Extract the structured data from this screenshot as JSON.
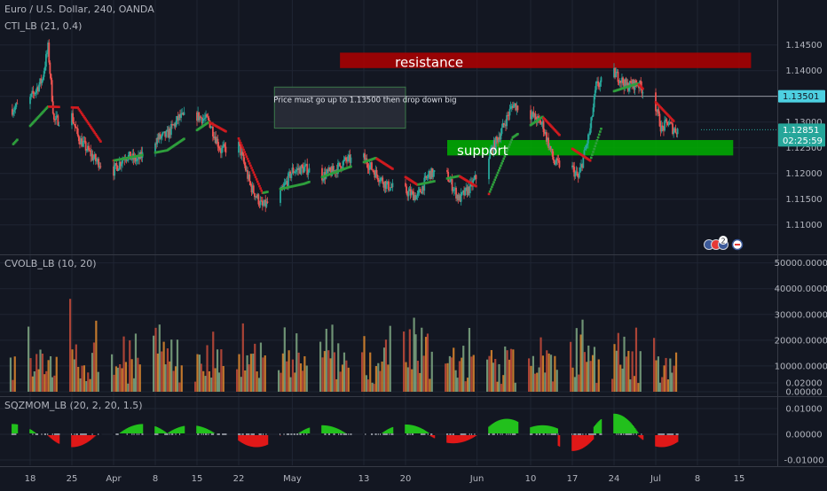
{
  "colors": {
    "background": "#131722",
    "grid": "#1f2533",
    "axis_text": "#b2b5be",
    "divider": "#363a45",
    "up": "#26a69a",
    "down": "#ef5350",
    "cti_up": "#2e9e3c",
    "cti_down": "#d01a1f",
    "resistance_fill": "#b00000",
    "support_fill": "#00b000",
    "note_fill": "#2a2e39",
    "note_border": "#3b7a4a",
    "price_tag_bg": "#4dd0e1",
    "price_tag_text": "#131722",
    "last_price_bg": "#26a69a",
    "vol_green": "#7fa883",
    "vol_red": "#c64b3a",
    "vol_orange": "#e08a2e",
    "mom_green": "#22c01c",
    "mom_red": "#e01818"
  },
  "main": {
    "symbol_label": "Euro / U.S. Dollar, 240, OANDA",
    "indicator_label": "CTI_LB (21, 0.4)",
    "resistance_label": "resistance",
    "support_label": "support",
    "note_text": "Price must go up to 1.13500 then drop down big",
    "price_line_tag": "1.13501",
    "last_price_tag": "1.12851",
    "countdown_tag": "02:25:59",
    "event_badge_count": "2",
    "event_badge_icons": [
      "flag-icon-eu",
      "flag-icon-eu",
      "flag-icon-us"
    ]
  },
  "volume": {
    "indicator_label": "CVOLB_LB (10, 20)"
  },
  "momentum": {
    "indicator_label": "SQZMOM_LB (20, 2, 20, 1.5)"
  },
  "chart_data": [
    {
      "type": "candlestick",
      "title": "Euro / U.S. Dollar, 240, OANDA",
      "y_axis_ticks": [
        "1.14500",
        "1.14000",
        "1.13500",
        "1.13000",
        "1.12500",
        "1.12000",
        "1.11500",
        "1.11000"
      ],
      "ylim": [
        1.106,
        1.148
      ],
      "x_axis_ticks": [
        "18",
        "25",
        "Apr",
        "8",
        "15",
        "22",
        "May",
        "13",
        "20",
        "Jun",
        "10",
        "17",
        "24",
        "Jul",
        "8",
        "15"
      ],
      "x_range": [
        "2019-03-15",
        "2019-07-17"
      ],
      "close_path": [
        [
          "2019-03-15",
          1.1325
        ],
        [
          "2019-03-18",
          1.1345
        ],
        [
          "2019-03-20",
          1.1382
        ],
        [
          "2019-03-21",
          1.1445
        ],
        [
          "2019-03-22",
          1.1302
        ],
        [
          "2019-03-25",
          1.1312
        ],
        [
          "2019-03-26",
          1.1272
        ],
        [
          "2019-03-27",
          1.1255
        ],
        [
          "2019-03-29",
          1.1225
        ],
        [
          "2019-04-01",
          1.1205
        ],
        [
          "2019-04-03",
          1.1235
        ],
        [
          "2019-04-05",
          1.1225
        ],
        [
          "2019-04-08",
          1.1265
        ],
        [
          "2019-04-10",
          1.1275
        ],
        [
          "2019-04-12",
          1.1308
        ],
        [
          "2019-04-15",
          1.1312
        ],
        [
          "2019-04-17",
          1.1302
        ],
        [
          "2019-04-19",
          1.1245
        ],
        [
          "2019-04-22",
          1.1255
        ],
        [
          "2019-04-24",
          1.1175
        ],
        [
          "2019-04-26",
          1.1135
        ],
        [
          "2019-04-29",
          1.116
        ],
        [
          "2019-05-01",
          1.1205
        ],
        [
          "2019-05-03",
          1.121
        ],
        [
          "2019-05-06",
          1.1195
        ],
        [
          "2019-05-08",
          1.1205
        ],
        [
          "2019-05-10",
          1.1225
        ],
        [
          "2019-05-13",
          1.123
        ],
        [
          "2019-05-15",
          1.12
        ],
        [
          "2019-05-17",
          1.1175
        ],
        [
          "2019-05-20",
          1.1165
        ],
        [
          "2019-05-22",
          1.1155
        ],
        [
          "2019-05-24",
          1.12
        ],
        [
          "2019-05-27",
          1.1195
        ],
        [
          "2019-05-29",
          1.115
        ],
        [
          "2019-05-31",
          1.1175
        ],
        [
          "2019-06-03",
          1.1235
        ],
        [
          "2019-06-05",
          1.128
        ],
        [
          "2019-06-07",
          1.1335
        ],
        [
          "2019-06-10",
          1.1315
        ],
        [
          "2019-06-12",
          1.1295
        ],
        [
          "2019-06-14",
          1.122
        ],
        [
          "2019-06-17",
          1.121
        ],
        [
          "2019-06-18",
          1.119
        ],
        [
          "2019-06-20",
          1.1285
        ],
        [
          "2019-06-21",
          1.137
        ],
        [
          "2019-06-24",
          1.1395
        ],
        [
          "2019-06-25",
          1.1385
        ],
        [
          "2019-06-26",
          1.137
        ],
        [
          "2019-06-28",
          1.1375
        ],
        [
          "2019-07-01",
          1.133
        ],
        [
          "2019-07-02",
          1.1285
        ],
        [
          "2019-07-03",
          1.13
        ],
        [
          "2019-07-04",
          1.1285
        ]
      ],
      "cti_path": [
        [
          "2019-03-15",
          1.1255
        ],
        [
          "2019-03-21",
          1.133
        ],
        [
          "2019-03-26",
          1.1328
        ],
        [
          "2019-04-01",
          1.1225
        ],
        [
          "2019-04-10",
          1.1245
        ],
        [
          "2019-04-17",
          1.13
        ],
        [
          "2019-04-22",
          1.1268
        ],
        [
          "2019-04-26",
          1.1162
        ],
        [
          "2019-05-03",
          1.118
        ],
        [
          "2019-05-10",
          1.121
        ],
        [
          "2019-05-15",
          1.123
        ],
        [
          "2019-05-22",
          1.1178
        ],
        [
          "2019-05-29",
          1.1195
        ],
        [
          "2019-06-03",
          1.116
        ],
        [
          "2019-06-07",
          1.127
        ],
        [
          "2019-06-12",
          1.131
        ],
        [
          "2019-06-17",
          1.1248
        ],
        [
          "2019-06-20",
          1.1225
        ],
        [
          "2019-06-24",
          1.136
        ],
        [
          "2019-06-28",
          1.1375
        ],
        [
          "2019-07-04",
          1.1302
        ]
      ],
      "annotations": [
        {
          "label": "resistance",
          "from": "2019-05-09",
          "to": "2019-07-17",
          "y_low": 1.1405,
          "y_high": 1.1435
        },
        {
          "label": "support",
          "from": "2019-05-27",
          "to": "2019-07-14",
          "y_low": 1.1235,
          "y_high": 1.1265
        },
        {
          "label": "Price must go up to 1.13500 then drop down big",
          "from": "2019-04-28",
          "to": "2019-05-20",
          "y_low": 1.1288,
          "y_high": 1.1368
        }
      ],
      "horizontal_line": 1.13501,
      "last_price": 1.12851
    },
    {
      "type": "bar",
      "title": "CVOLB_LB (10, 20)",
      "y_axis_ticks": [
        "50000.00000",
        "40000.00000",
        "30000.00000",
        "20000.00000",
        "10000.00000",
        "0.00000"
      ],
      "ylim": [
        0,
        50000
      ]
    },
    {
      "type": "bar",
      "title": "SQZMOM_LB (20, 2, 20, 1.5)",
      "y_axis_ticks": [
        "0.02000",
        "0.01000",
        "0.00000",
        "-0.01000"
      ],
      "ylim": [
        -0.015,
        0.02
      ],
      "hump_centers": [
        {
          "date": "2019-03-15",
          "value": 0.004
        },
        {
          "date": "2019-03-25",
          "value": -0.005
        },
        {
          "date": "2019-04-06",
          "value": 0.004
        },
        {
          "date": "2019-04-14",
          "value": 0.0035
        },
        {
          "date": "2019-04-25",
          "value": -0.005
        },
        {
          "date": "2019-05-06",
          "value": 0.0035
        },
        {
          "date": "2019-05-20",
          "value": 0.0038
        },
        {
          "date": "2019-05-28",
          "value": -0.0035
        },
        {
          "date": "2019-06-06",
          "value": 0.006
        },
        {
          "date": "2019-06-12",
          "value": 0.0035
        },
        {
          "date": "2019-06-17",
          "value": -0.0065
        },
        {
          "date": "2019-06-24",
          "value": 0.008
        },
        {
          "date": "2019-07-02",
          "value": -0.005
        }
      ]
    }
  ]
}
